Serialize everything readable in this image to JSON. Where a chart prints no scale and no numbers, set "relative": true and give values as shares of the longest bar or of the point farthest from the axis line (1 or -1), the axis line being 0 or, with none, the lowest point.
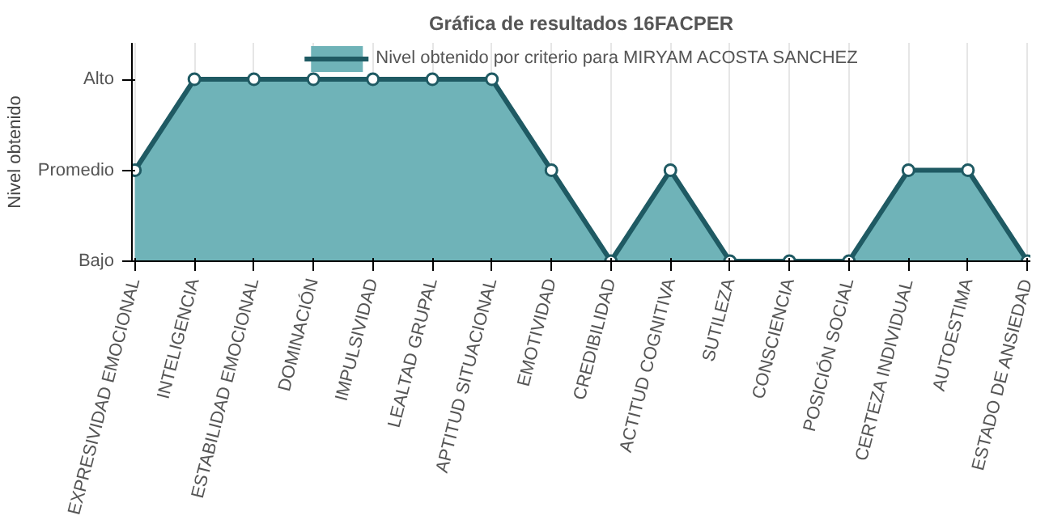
{
  "chart_data": {
    "type": "area",
    "title": "Gráfica de resultados 16FACPER",
    "ylabel": "Nivel obtenido",
    "categories": [
      "EXPRESIVIDAD EMOCIONAL",
      "INTELIGENCIA",
      "ESTABILIDAD EMOCIONAL",
      "DOMINACIÓN",
      "IMPULSIVIDAD",
      "LEALTAD GRUPAL",
      "APTITUD SITUACIONAL",
      "EMOTIVIDAD",
      "CREDIBILIDAD",
      "ACTITUD COGNITIVA",
      "SUTILEZA",
      "CONSCIENCIA",
      "POSICIÓN SOCIAL",
      "CERTEZA INDIVIDUAL",
      "AUTOESTIMA",
      "ESTADO DE ANSIEDAD"
    ],
    "y_categories": [
      "Alto",
      "Promedio",
      "Bajo"
    ],
    "relative": true,
    "series": [
      {
        "name": "Nivel obtenido por criterio para MIRYAM ACOSTA SANCHEZ",
        "color": "#1f5a63",
        "values": [
          0.5,
          1,
          1,
          1,
          1,
          1,
          1,
          0.5,
          0,
          0.5,
          0,
          0,
          0,
          0.5,
          0.5,
          0
        ]
      }
    ],
    "grid": "x",
    "legend": "top",
    "marker": "circle",
    "line_style": "solid"
  }
}
